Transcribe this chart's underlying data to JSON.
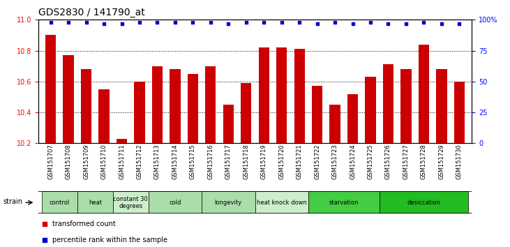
{
  "title": "GDS2830 / 141790_at",
  "categories": [
    "GSM151707",
    "GSM151708",
    "GSM151709",
    "GSM151710",
    "GSM151711",
    "GSM151712",
    "GSM151713",
    "GSM151714",
    "GSM151715",
    "GSM151716",
    "GSM151717",
    "GSM151718",
    "GSM151719",
    "GSM151720",
    "GSM151721",
    "GSM151722",
    "GSM151723",
    "GSM151724",
    "GSM151725",
    "GSM151726",
    "GSM151727",
    "GSM151728",
    "GSM151729",
    "GSM151730"
  ],
  "bar_values": [
    10.9,
    10.77,
    10.68,
    10.55,
    10.23,
    10.6,
    10.7,
    10.68,
    10.65,
    10.7,
    10.45,
    10.59,
    10.82,
    10.82,
    10.81,
    10.57,
    10.45,
    10.52,
    10.63,
    10.71,
    10.68,
    10.84,
    10.68,
    10.6
  ],
  "percentile_values": [
    98,
    98,
    98,
    97,
    97,
    98,
    98,
    98,
    98,
    98,
    97,
    98,
    98,
    98,
    98,
    97,
    98,
    97,
    98,
    97,
    97,
    98,
    97,
    97
  ],
  "bar_color": "#cc0000",
  "percentile_color": "#0000cc",
  "ylim_left": [
    10.2,
    11.0
  ],
  "ylim_right": [
    0,
    100
  ],
  "yticks_left": [
    10.2,
    10.4,
    10.6,
    10.8,
    11.0
  ],
  "yticks_right": [
    0,
    25,
    50,
    75,
    100
  ],
  "ytick_labels_right": [
    "0",
    "25",
    "50",
    "75",
    "100%"
  ],
  "group_bounds": [
    {
      "label": "control",
      "start": 0,
      "end": 1,
      "color": "#aaddaa"
    },
    {
      "label": "heat",
      "start": 2,
      "end": 3,
      "color": "#aaddaa"
    },
    {
      "label": "constant 30\ndegrees",
      "start": 4,
      "end": 5,
      "color": "#cceecc"
    },
    {
      "label": "cold",
      "start": 6,
      "end": 8,
      "color": "#aaddaa"
    },
    {
      "label": "longevity",
      "start": 9,
      "end": 11,
      "color": "#aaddaa"
    },
    {
      "label": "heat knock down",
      "start": 12,
      "end": 14,
      "color": "#cceecc"
    },
    {
      "label": "starvation",
      "start": 15,
      "end": 18,
      "color": "#44cc44"
    },
    {
      "label": "desiccation",
      "start": 19,
      "end": 23,
      "color": "#22bb22"
    }
  ],
  "background_color": "#ffffff",
  "plot_bg_color": "#ffffff",
  "title_fontsize": 10,
  "tick_fontsize": 7,
  "bar_width": 0.6
}
